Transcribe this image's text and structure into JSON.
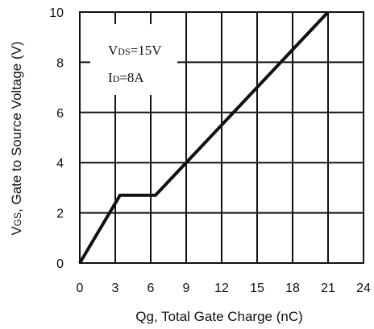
{
  "chart_data": {
    "type": "line",
    "title": "",
    "xlabel": "Qg, Total Gate Charge (nC)",
    "ylabel": {
      "symbol": "V",
      "subscript": "GS",
      "rest": ", Gate to Source Voltage (V)"
    },
    "xlim": [
      0,
      24
    ],
    "ylim": [
      0,
      10
    ],
    "x_ticks": [
      0,
      3,
      6,
      9,
      12,
      15,
      18,
      21,
      24
    ],
    "y_ticks": [
      0,
      2,
      4,
      6,
      8,
      10
    ],
    "grid": true,
    "series": [
      {
        "x": [
          0,
          3.4,
          6.4,
          21
        ],
        "y": [
          0,
          2.7,
          2.7,
          10
        ],
        "color": "#111111"
      }
    ],
    "annotations": [
      {
        "symbol": "V",
        "subscript": "DS",
        "value": "=15V"
      },
      {
        "symbol": "I",
        "subscript": "D",
        "value": "=8A"
      }
    ]
  }
}
